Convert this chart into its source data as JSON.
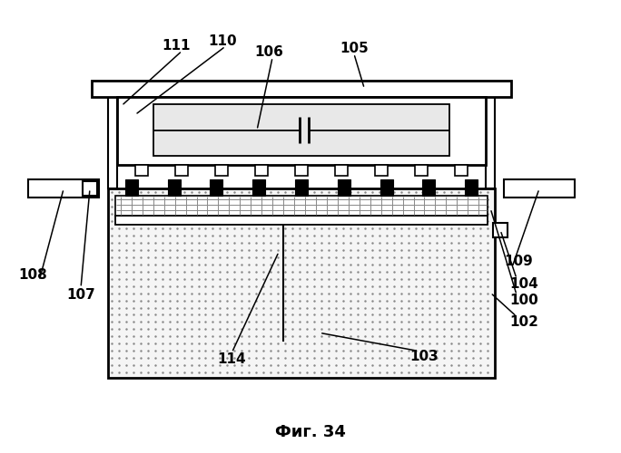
{
  "fig_label": "Фиг. 34",
  "bg_color": "#ffffff",
  "lc": "#000000"
}
